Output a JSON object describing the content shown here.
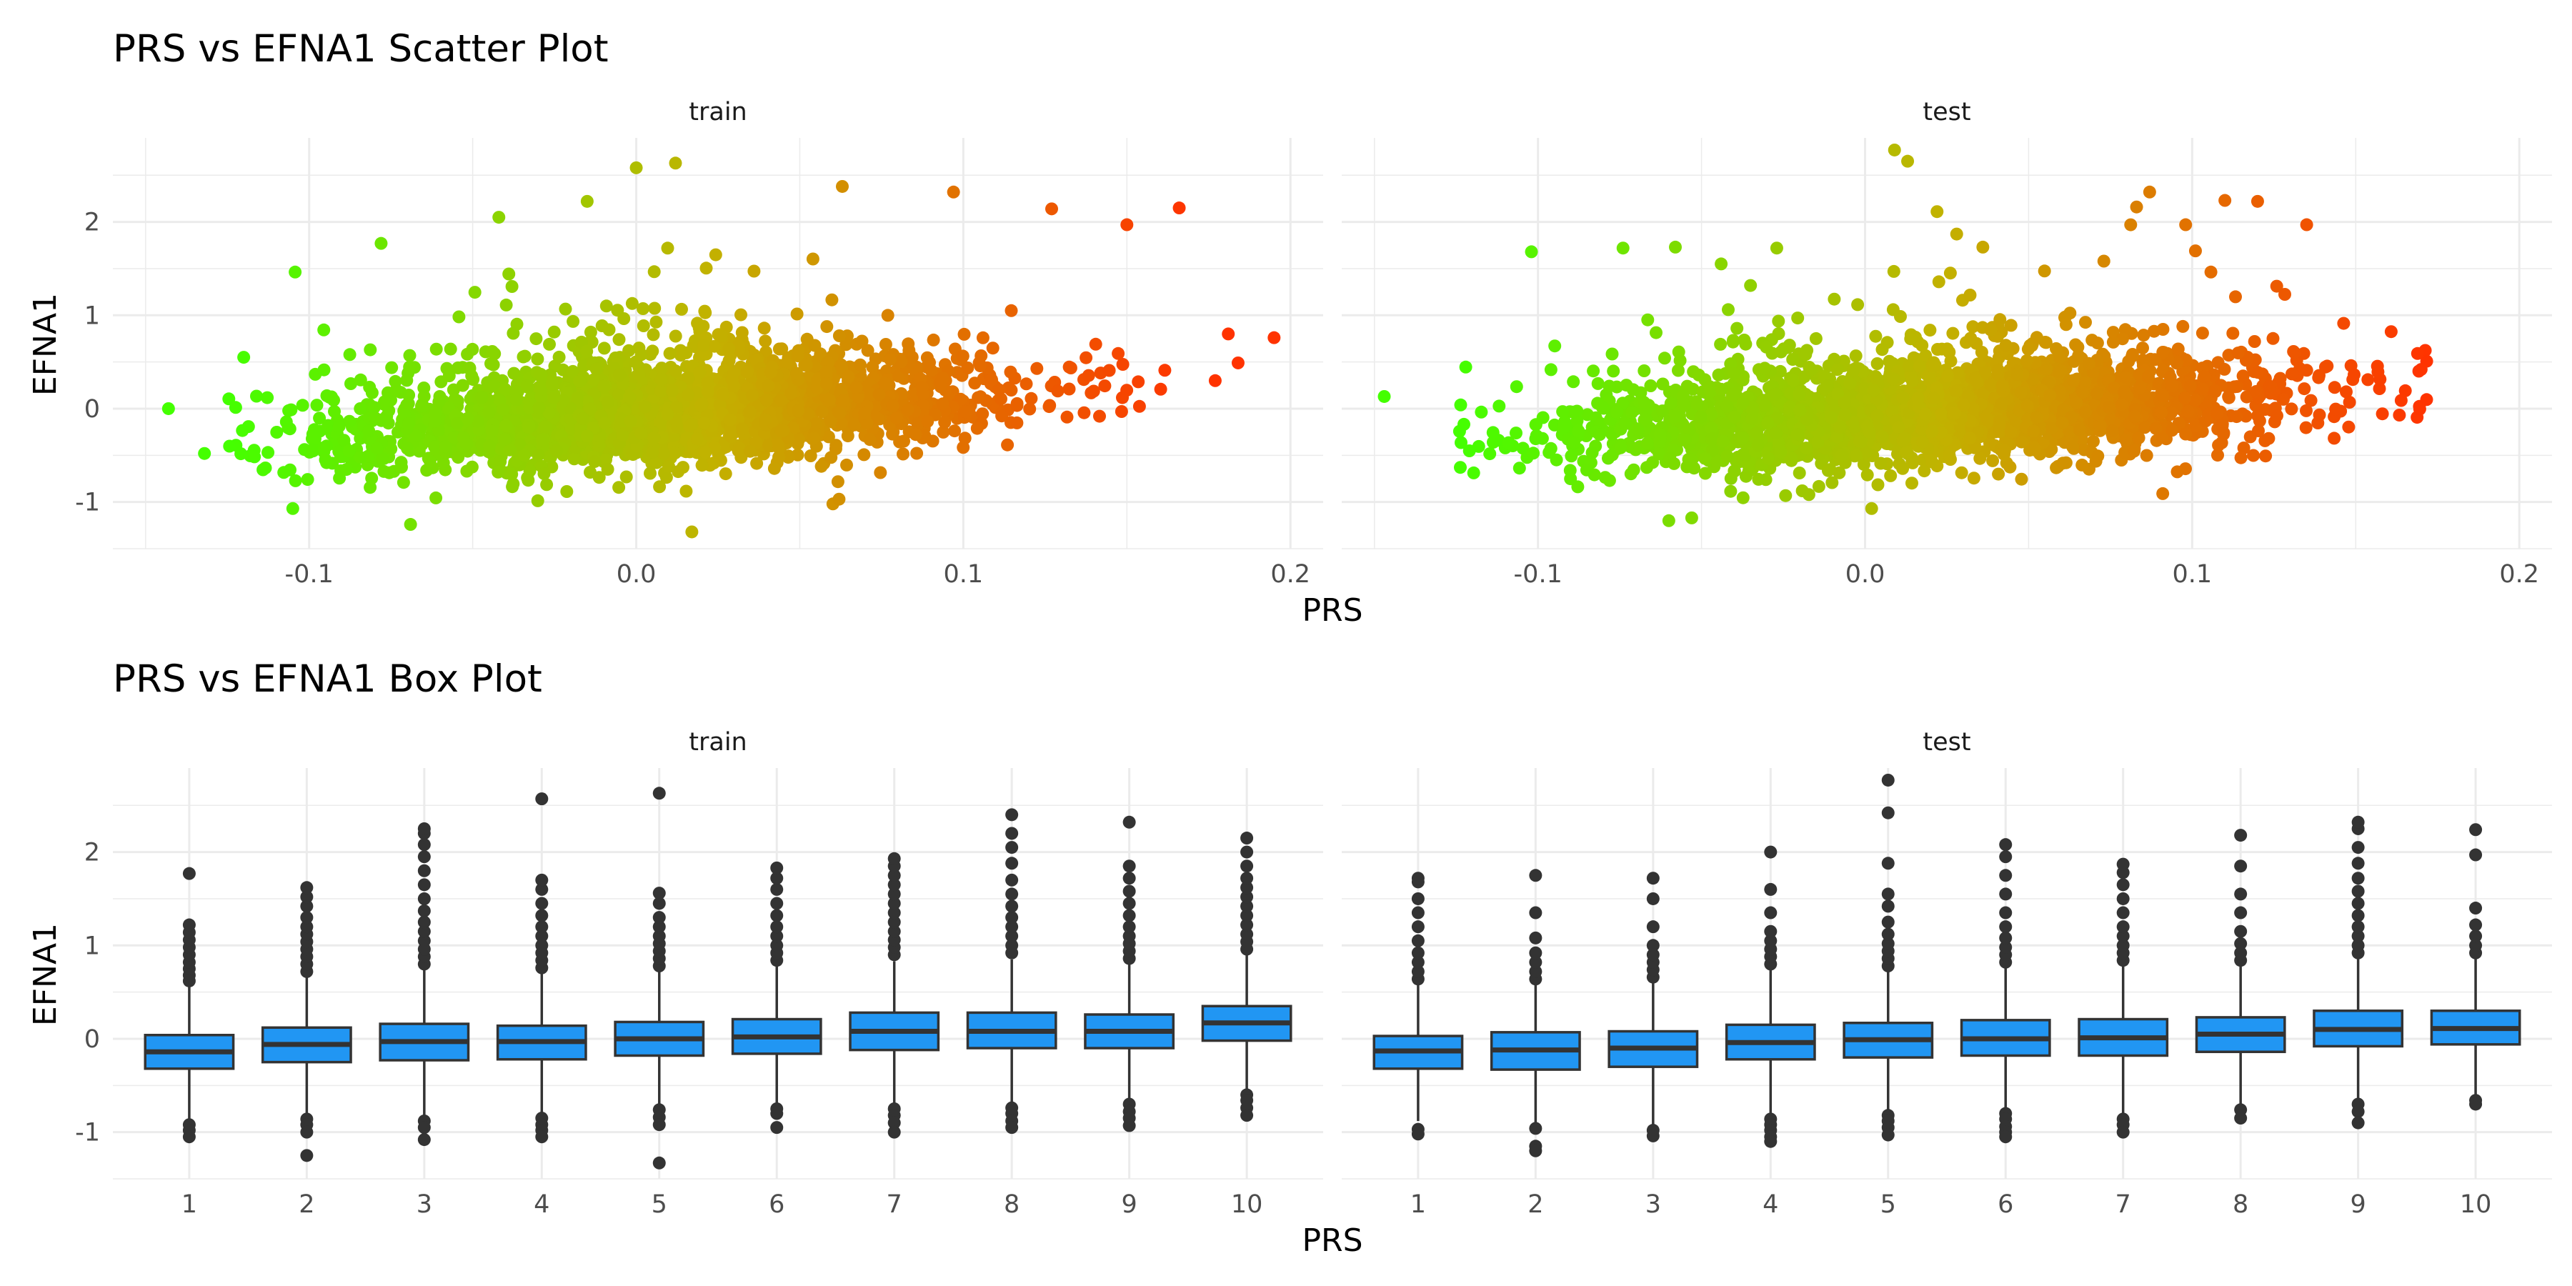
{
  "chart_data": [
    {
      "type": "scatter",
      "title": "PRS vs EFNA1 Scatter Plot",
      "xlabel": "PRS",
      "ylabel": "EFNA1",
      "xlim": [
        -0.16,
        0.21
      ],
      "ylim": [
        -1.5,
        2.9
      ],
      "x_ticks": [
        -0.1,
        0.0,
        0.1,
        0.2
      ],
      "x_tick_labels": [
        "-0.1",
        "0.0",
        "0.1",
        "0.2"
      ],
      "y_ticks": [
        -1,
        0,
        1,
        2
      ],
      "y_tick_labels": [
        "-1",
        "0",
        "1",
        "2"
      ],
      "grid": true,
      "legend": "none",
      "color_scale": {
        "low": "#44ff00",
        "mid": "#c2b200",
        "high": "#ff3300"
      },
      "facets": [
        {
          "label": "train",
          "x_center": 0.01,
          "x_sd": 0.05,
          "trend_slope": 2.2,
          "x_range": [
            -0.125,
            0.17
          ],
          "outliers": [
            {
              "x": -0.143,
              "y": 0.0
            },
            {
              "x": -0.132,
              "y": -0.48
            },
            {
              "x": -0.12,
              "y": 0.55
            },
            {
              "x": -0.078,
              "y": 1.77
            },
            {
              "x": -0.042,
              "y": 2.05
            },
            {
              "x": -0.015,
              "y": 2.22
            },
            {
              "x": 0.0,
              "y": 2.58
            },
            {
              "x": 0.012,
              "y": 2.63
            },
            {
              "x": 0.063,
              "y": 2.38
            },
            {
              "x": 0.097,
              "y": 2.32
            },
            {
              "x": 0.127,
              "y": 2.14
            },
            {
              "x": 0.15,
              "y": 1.97
            },
            {
              "x": 0.166,
              "y": 2.15
            },
            {
              "x": 0.195,
              "y": 0.76
            },
            {
              "x": 0.181,
              "y": 0.8
            },
            {
              "x": 0.184,
              "y": 0.49
            },
            {
              "x": 0.177,
              "y": 0.3
            },
            {
              "x": 0.017,
              "y": -1.32
            },
            {
              "x": -0.069,
              "y": -1.24
            },
            {
              "x": -0.105,
              "y": -1.07
            },
            {
              "x": 0.062,
              "y": -0.97
            }
          ]
        },
        {
          "label": "test",
          "x_center": 0.02,
          "x_sd": 0.055,
          "trend_slope": 2.0,
          "x_range": [
            -0.125,
            0.172
          ],
          "outliers": [
            {
              "x": -0.147,
              "y": 0.13
            },
            {
              "x": -0.102,
              "y": 1.68
            },
            {
              "x": -0.074,
              "y": 1.72
            },
            {
              "x": -0.058,
              "y": 1.73
            },
            {
              "x": -0.044,
              "y": 1.55
            },
            {
              "x": -0.027,
              "y": 1.72
            },
            {
              "x": 0.009,
              "y": 2.77
            },
            {
              "x": 0.013,
              "y": 2.65
            },
            {
              "x": 0.022,
              "y": 2.11
            },
            {
              "x": 0.028,
              "y": 1.87
            },
            {
              "x": 0.036,
              "y": 1.73
            },
            {
              "x": 0.073,
              "y": 1.58
            },
            {
              "x": 0.087,
              "y": 2.32
            },
            {
              "x": 0.083,
              "y": 2.16
            },
            {
              "x": 0.098,
              "y": 1.97
            },
            {
              "x": 0.101,
              "y": 1.69
            },
            {
              "x": 0.11,
              "y": 2.23
            },
            {
              "x": 0.12,
              "y": 2.22
            },
            {
              "x": 0.135,
              "y": 1.97
            },
            {
              "x": 0.17,
              "y": 0.42
            },
            {
              "x": -0.06,
              "y": -1.2
            },
            {
              "x": -0.053,
              "y": -1.17
            },
            {
              "x": 0.002,
              "y": -1.07
            },
            {
              "x": 0.091,
              "y": -0.91
            }
          ]
        }
      ]
    },
    {
      "type": "box",
      "title": "PRS vs EFNA1 Box Plot",
      "xlabel": "PRS",
      "ylabel": "EFNA1",
      "categories": [
        "1",
        "2",
        "3",
        "4",
        "5",
        "6",
        "7",
        "8",
        "9",
        "10"
      ],
      "ylim": [
        -1.5,
        2.9
      ],
      "y_ticks": [
        -1,
        0,
        1,
        2
      ],
      "y_tick_labels": [
        "-1",
        "0",
        "1",
        "2"
      ],
      "grid": true,
      "legend": "none",
      "box_fill": "#2196f3",
      "box_stroke": "#333333",
      "facets": [
        {
          "label": "train",
          "boxes": [
            {
              "q1": -0.32,
              "median": -0.14,
              "q3": 0.04,
              "whisker_low": -0.86,
              "whisker_high": 0.57,
              "outliers_high": [
                0.62,
                0.68,
                0.75,
                0.82,
                0.9,
                0.98,
                1.06,
                1.14,
                1.22,
                1.77
              ],
              "outliers_low": [
                -0.92,
                -0.98,
                -1.05
              ]
            },
            {
              "q1": -0.25,
              "median": -0.06,
              "q3": 0.12,
              "whisker_low": -0.8,
              "whisker_high": 0.67,
              "outliers_high": [
                0.72,
                0.8,
                0.88,
                0.96,
                1.04,
                1.12,
                1.2,
                1.3,
                1.42,
                1.52,
                1.62
              ],
              "outliers_low": [
                -0.86,
                -0.92,
                -1.0,
                -1.25
              ]
            },
            {
              "q1": -0.23,
              "median": -0.03,
              "q3": 0.16,
              "whisker_low": -0.83,
              "whisker_high": 0.74,
              "outliers_high": [
                0.8,
                0.88,
                0.96,
                1.05,
                1.15,
                1.25,
                1.37,
                1.5,
                1.65,
                1.8,
                1.95,
                2.08,
                2.2,
                2.25
              ],
              "outliers_low": [
                -0.88,
                -0.95,
                -1.08
              ]
            },
            {
              "q1": -0.22,
              "median": -0.03,
              "q3": 0.14,
              "whisker_low": -0.79,
              "whisker_high": 0.7,
              "outliers_high": [
                0.76,
                0.84,
                0.92,
                1.0,
                1.1,
                1.2,
                1.32,
                1.45,
                1.6,
                1.7,
                2.57
              ],
              "outliers_low": [
                -0.85,
                -0.92,
                -0.98,
                -1.05
              ]
            },
            {
              "q1": -0.18,
              "median": 0.0,
              "q3": 0.18,
              "whisker_low": -0.7,
              "whisker_high": 0.72,
              "outliers_high": [
                0.78,
                0.86,
                0.94,
                1.02,
                1.1,
                1.2,
                1.3,
                1.45,
                1.56,
                2.63
              ],
              "outliers_low": [
                -0.76,
                -0.84,
                -0.92,
                -1.33
              ]
            },
            {
              "q1": -0.16,
              "median": 0.02,
              "q3": 0.21,
              "whisker_low": -0.7,
              "whisker_high": 0.78,
              "outliers_high": [
                0.84,
                0.92,
                1.0,
                1.1,
                1.2,
                1.32,
                1.45,
                1.6,
                1.72,
                1.83
              ],
              "outliers_low": [
                -0.75,
                -0.8,
                -0.95
              ]
            },
            {
              "q1": -0.12,
              "median": 0.08,
              "q3": 0.28,
              "whisker_low": -0.7,
              "whisker_high": 0.83,
              "outliers_high": [
                0.9,
                0.98,
                1.06,
                1.15,
                1.25,
                1.35,
                1.45,
                1.55,
                1.65,
                1.75,
                1.85,
                1.93
              ],
              "outliers_low": [
                -0.75,
                -0.82,
                -0.9,
                -1.0
              ]
            },
            {
              "q1": -0.1,
              "median": 0.08,
              "q3": 0.28,
              "whisker_low": -0.68,
              "whisker_high": 0.85,
              "outliers_high": [
                0.92,
                1.0,
                1.1,
                1.2,
                1.3,
                1.42,
                1.55,
                1.7,
                1.88,
                2.05,
                2.2,
                2.4
              ],
              "outliers_low": [
                -0.74,
                -0.8,
                -0.88,
                -0.95
              ]
            },
            {
              "q1": -0.1,
              "median": 0.08,
              "q3": 0.26,
              "whisker_low": -0.64,
              "whisker_high": 0.8,
              "outliers_high": [
                0.86,
                0.94,
                1.02,
                1.1,
                1.2,
                1.32,
                1.45,
                1.58,
                1.72,
                1.85,
                2.32
              ],
              "outliers_low": [
                -0.7,
                -0.78,
                -0.85,
                -0.93
              ]
            },
            {
              "q1": -0.02,
              "median": 0.17,
              "q3": 0.35,
              "whisker_low": -0.55,
              "whisker_high": 0.9,
              "outliers_high": [
                0.96,
                1.04,
                1.12,
                1.22,
                1.32,
                1.42,
                1.52,
                1.62,
                1.72,
                1.85,
                2.0,
                2.15
              ],
              "outliers_low": [
                -0.6,
                -0.66,
                -0.74,
                -0.82
              ]
            }
          ]
        },
        {
          "label": "test",
          "boxes": [
            {
              "q1": -0.32,
              "median": -0.13,
              "q3": 0.03,
              "whisker_low": -0.88,
              "whisker_high": 0.58,
              "outliers_high": [
                0.64,
                0.72,
                0.82,
                0.92,
                1.05,
                1.2,
                1.35,
                1.5,
                1.68,
                1.72
              ],
              "outliers_low": [
                -0.97,
                -1.02
              ]
            },
            {
              "q1": -0.33,
              "median": -0.12,
              "q3": 0.07,
              "whisker_low": -0.9,
              "whisker_high": 0.58,
              "outliers_high": [
                0.64,
                0.72,
                0.82,
                0.92,
                1.08,
                1.35,
                1.75
              ],
              "outliers_low": [
                -0.96,
                -1.15,
                -1.2
              ]
            },
            {
              "q1": -0.3,
              "median": -0.1,
              "q3": 0.08,
              "whisker_low": -0.92,
              "whisker_high": 0.6,
              "outliers_high": [
                0.66,
                0.74,
                0.82,
                0.9,
                1.0,
                1.2,
                1.5,
                1.72
              ],
              "outliers_low": [
                -0.98,
                -1.04
              ]
            },
            {
              "q1": -0.22,
              "median": -0.04,
              "q3": 0.15,
              "whisker_low": -0.8,
              "whisker_high": 0.74,
              "outliers_high": [
                0.8,
                0.88,
                0.96,
                1.05,
                1.15,
                1.35,
                1.6,
                2.0
              ],
              "outliers_low": [
                -0.86,
                -0.92,
                -0.98,
                -1.05,
                -1.1
              ]
            },
            {
              "q1": -0.2,
              "median": -0.01,
              "q3": 0.17,
              "whisker_low": -0.76,
              "whisker_high": 0.72,
              "outliers_high": [
                0.78,
                0.86,
                0.94,
                1.02,
                1.12,
                1.25,
                1.42,
                1.55,
                1.88,
                2.42,
                2.77
              ],
              "outliers_low": [
                -0.82,
                -0.88,
                -0.95,
                -1.03
              ]
            },
            {
              "q1": -0.18,
              "median": 0.0,
              "q3": 0.2,
              "whisker_low": -0.74,
              "whisker_high": 0.76,
              "outliers_high": [
                0.82,
                0.9,
                0.98,
                1.08,
                1.2,
                1.35,
                1.55,
                1.75,
                1.95,
                2.08
              ],
              "outliers_low": [
                -0.8,
                -0.86,
                -0.94,
                -1.0,
                -1.05
              ]
            },
            {
              "q1": -0.18,
              "median": 0.01,
              "q3": 0.21,
              "whisker_low": -0.8,
              "whisker_high": 0.78,
              "outliers_high": [
                0.84,
                0.92,
                1.0,
                1.1,
                1.2,
                1.35,
                1.5,
                1.65,
                1.78,
                1.87
              ],
              "outliers_low": [
                -0.86,
                -0.92,
                -1.0
              ]
            },
            {
              "q1": -0.14,
              "median": 0.05,
              "q3": 0.23,
              "whisker_low": -0.7,
              "whisker_high": 0.78,
              "outliers_high": [
                0.84,
                0.92,
                1.02,
                1.15,
                1.35,
                1.55,
                1.85,
                2.18
              ],
              "outliers_low": [
                -0.76,
                -0.85
              ]
            },
            {
              "q1": -0.08,
              "median": 0.1,
              "q3": 0.3,
              "whisker_low": -0.64,
              "whisker_high": 0.86,
              "outliers_high": [
                0.92,
                1.0,
                1.1,
                1.2,
                1.32,
                1.45,
                1.58,
                1.72,
                1.88,
                2.05,
                2.25,
                2.32
              ],
              "outliers_low": [
                -0.7,
                -0.78,
                -0.9
              ]
            },
            {
              "q1": -0.06,
              "median": 0.11,
              "q3": 0.3,
              "whisker_low": -0.6,
              "whisker_high": 0.86,
              "outliers_high": [
                0.92,
                1.0,
                1.1,
                1.22,
                1.4,
                1.97,
                2.24
              ],
              "outliers_low": [
                -0.66,
                -0.7
              ]
            }
          ]
        }
      ]
    }
  ]
}
